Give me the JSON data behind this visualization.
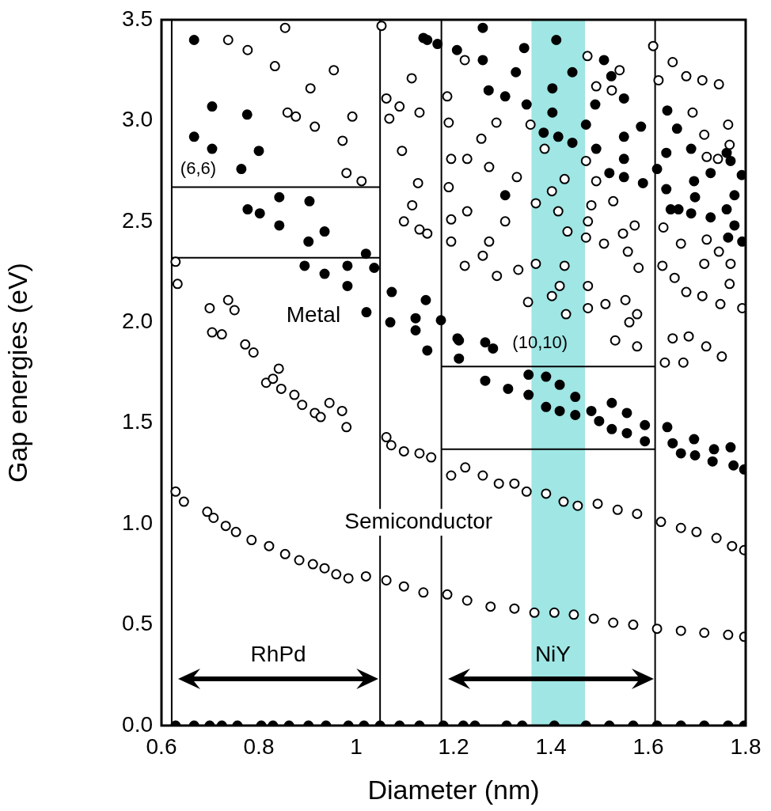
{
  "chart_data": {
    "type": "scatter",
    "xlabel": "Diameter (nm)",
    "ylabel": "Gap energies (eV)",
    "xlim": [
      0.6,
      1.8
    ],
    "xticks": [
      0.6,
      0.8,
      1,
      1.2,
      1.4,
      1.6,
      1.8
    ],
    "ylim": [
      0,
      3.5
    ],
    "yticks": [
      {
        "value": 0,
        "label": "0.0"
      },
      {
        "value": 0.5,
        "label": "0.5"
      },
      {
        "value": 1,
        "label": "1.0"
      },
      {
        "value": 1.5,
        "label": "1.5"
      },
      {
        "value": 2,
        "label": "2.0"
      },
      {
        "value": 2.5,
        "label": "2.5"
      },
      {
        "value": 3,
        "label": "3.0"
      },
      {
        "value": 3.5,
        "label": "3.5"
      }
    ],
    "grid": false,
    "legend": false,
    "marker": "circle",
    "series": [
      {
        "color": "#000000",
        "x": [
          0.629,
          0.646,
          0.694,
          0.707,
          0.732,
          0.753,
          0.785,
          0.821,
          0.854,
          0.883,
          0.911,
          0.935,
          0.959,
          0.984,
          1.02,
          1.062,
          1.098,
          1.138,
          1.187,
          1.228,
          1.276,
          1.325,
          1.366,
          1.407,
          1.447,
          1.488,
          1.528,
          1.569,
          1.618,
          1.667,
          1.715,
          1.764,
          1.797,
          0.629,
          0.633,
          0.699,
          0.704,
          0.724,
          0.737,
          0.75,
          0.772,
          0.789,
          0.815,
          0.829,
          0.841,
          0.846,
          0.873,
          0.889,
          0.915,
          0.927,
          0.945,
          0.971,
          0.98,
          1.062,
          1.072,
          1.098,
          1.13,
          1.154,
          1.195,
          1.224,
          1.26,
          1.293,
          1.325,
          1.35,
          1.39,
          1.426,
          1.455,
          1.496,
          1.537,
          1.577,
          1.626,
          1.667,
          1.699,
          1.74,
          1.772,
          1.797,
          0.854,
          0.737,
          0.777,
          0.833,
          0.954,
          0.906,
          0.859,
          0.876,
          0.992,
          0.915,
          0.972,
          0.98,
          1.011,
          1.052,
          1.114,
          1.062,
          1.068,
          1.089,
          1.13,
          1.094,
          1.127,
          1.115,
          1.13,
          1.098,
          1.146,
          1.187,
          1.19,
          1.195,
          1.19,
          1.195,
          1.195,
          1.223,
          1.288,
          1.257,
          1.228,
          1.273,
          1.33,
          1.228,
          1.306,
          1.273,
          1.26,
          1.223,
          1.289,
          1.333,
          1.369,
          1.402,
          1.428,
          1.415,
          1.387,
          1.358,
          1.369,
          1.428,
          1.418,
          1.402,
          1.353,
          1.431,
          1.434,
          1.475,
          1.493,
          1.541,
          1.525,
          1.472,
          1.493,
          1.483,
          1.528,
          1.476,
          1.472,
          1.509,
          1.548,
          1.572,
          1.558,
          1.58,
          1.476,
          1.512,
          1.476,
          1.553,
          1.577,
          1.561,
          1.577,
          1.532,
          1.61,
          1.65,
          1.678,
          1.711,
          1.745,
          1.621,
          1.691,
          1.764,
          1.715,
          1.767,
          1.72,
          1.743,
          1.631,
          1.667,
          1.72,
          1.745,
          1.769,
          1.715,
          1.678,
          1.711,
          1.748,
          1.767,
          1.793,
          1.629,
          1.654,
          1.65,
          1.683,
          1.719,
          1.751,
          1.672,
          1.634
        ],
        "values": [
          1.16,
          1.11,
          1.06,
          1.03,
          0.99,
          0.96,
          0.92,
          0.89,
          0.85,
          0.82,
          0.8,
          0.78,
          0.75,
          0.73,
          0.74,
          0.72,
          0.69,
          0.66,
          0.65,
          0.62,
          0.59,
          0.58,
          0.56,
          0.56,
          0.55,
          0.53,
          0.51,
          0.5,
          0.48,
          0.47,
          0.46,
          0.45,
          0.44,
          2.3,
          2.19,
          2.07,
          1.95,
          1.94,
          2.11,
          2.06,
          1.89,
          1.85,
          1.7,
          1.72,
          1.77,
          1.67,
          1.64,
          1.59,
          1.55,
          1.53,
          1.6,
          1.56,
          1.48,
          1.43,
          1.39,
          1.36,
          1.35,
          1.33,
          1.24,
          1.28,
          1.24,
          1.2,
          1.2,
          1.16,
          1.15,
          1.11,
          1.09,
          1.1,
          1.07,
          1.05,
          1.01,
          0.98,
          0.96,
          0.93,
          0.89,
          0.87,
          3.46,
          3.4,
          3.35,
          3.27,
          3.25,
          3.16,
          3.04,
          3.02,
          3.02,
          2.97,
          2.9,
          2.74,
          2.7,
          3.47,
          3.21,
          3.11,
          3.01,
          3.07,
          3.04,
          2.85,
          2.69,
          2.58,
          2.46,
          2.5,
          2.44,
          3.12,
          2.99,
          2.81,
          2.67,
          2.51,
          2.4,
          3.3,
          2.99,
          2.91,
          2.81,
          2.77,
          2.72,
          2.55,
          2.5,
          2.4,
          2.33,
          2.28,
          2.23,
          2.26,
          2.59,
          2.65,
          2.71,
          2.55,
          2.86,
          2.98,
          2.29,
          2.28,
          2.18,
          2.13,
          2.1,
          2.04,
          2.45,
          3.32,
          3.17,
          3.25,
          3.15,
          2.8,
          2.7,
          2.58,
          2.6,
          2.5,
          2.42,
          2.39,
          2.44,
          2.48,
          2.35,
          2.27,
          2.18,
          2.09,
          2.07,
          2.11,
          2.04,
          2.0,
          1.88,
          1.91,
          3.37,
          3.29,
          3.22,
          3.2,
          3.18,
          3.2,
          3.04,
          2.98,
          2.93,
          2.88,
          2.82,
          2.81,
          2.47,
          2.39,
          2.41,
          2.35,
          2.29,
          2.29,
          2.15,
          2.13,
          2.09,
          2.19,
          2.07,
          2.28,
          2.22,
          1.92,
          1.93,
          1.88,
          1.83,
          1.8,
          1.8
        ]
      },
      {
        "color": "#000000",
        "x": [
          0.629,
          0.667,
          0.699,
          0.724,
          0.756,
          0.805,
          0.829,
          0.862,
          0.902,
          0.938,
          0.984,
          1.016,
          1.049,
          1.089,
          1.13,
          1.179,
          1.22,
          1.244,
          1.309,
          1.341,
          1.407,
          1.472,
          1.52,
          1.569,
          1.618,
          1.667,
          1.715,
          1.764,
          1.797,
          0.667,
          0.704,
          0.776,
          0.667,
          0.704,
          0.8,
          0.764,
          0.842,
          0.904,
          0.777,
          0.802,
          0.842,
          0.935,
          0.902,
          1.02,
          0.894,
          0.935,
          0.982,
          0.982,
          1.037,
          1.021,
          1.073,
          1.07,
          1.122,
          1.122,
          1.143,
          1.146,
          1.174,
          1.138,
          1.146,
          1.167,
          1.207,
          1.208,
          1.26,
          1.26,
          1.411,
          1.345,
          1.272,
          1.306,
          1.328,
          1.444,
          1.403,
          1.35,
          1.403,
          1.385,
          1.415,
          1.444,
          1.509,
          1.524,
          1.491,
          1.55,
          1.472,
          1.585,
          1.55,
          1.493,
          1.55,
          1.52,
          1.55,
          1.589,
          1.306,
          1.639,
          1.659,
          1.688,
          1.637,
          1.761,
          1.769,
          1.618,
          1.728,
          1.694,
          1.792,
          1.637,
          1.696,
          1.777,
          1.646,
          1.662,
          1.688,
          1.728,
          1.761,
          1.777,
          1.764,
          1.793,
          1.211,
          1.265,
          1.281,
          1.211,
          1.265,
          1.312,
          1.354,
          1.39,
          1.418,
          1.354,
          1.39,
          1.418,
          1.45,
          1.45,
          1.483,
          1.499,
          1.525,
          1.525,
          1.556,
          1.556,
          1.593,
          1.593,
          1.639,
          1.65,
          1.667,
          1.694,
          1.696,
          1.735,
          1.732,
          1.769,
          1.775,
          1.797
        ],
        "values": [
          0,
          0,
          0,
          0,
          0,
          0,
          0,
          0,
          0,
          0,
          0,
          0,
          0,
          0,
          0,
          0,
          0,
          0,
          0,
          0,
          0,
          0,
          0,
          0,
          0,
          0,
          0,
          0,
          0,
          3.4,
          3.07,
          3.03,
          2.92,
          2.86,
          2.85,
          2.76,
          2.62,
          2.6,
          2.56,
          2.54,
          2.48,
          2.45,
          2.4,
          2.34,
          2.28,
          2.24,
          2.28,
          2.18,
          2.27,
          2.05,
          2.15,
          2.0,
          2.02,
          1.96,
          2.11,
          1.86,
          2.01,
          3.41,
          3.4,
          3.38,
          3.35,
          1.92,
          3.46,
          3.3,
          3.4,
          3.36,
          3.15,
          3.12,
          3.24,
          3.24,
          3.16,
          3.08,
          3.04,
          2.94,
          2.92,
          2.89,
          3.3,
          3.22,
          3.08,
          3.11,
          2.98,
          2.97,
          2.92,
          2.86,
          2.81,
          2.74,
          2.72,
          2.69,
          2.63,
          3.05,
          2.96,
          2.86,
          2.84,
          2.84,
          2.8,
          2.76,
          2.74,
          2.7,
          2.73,
          2.66,
          2.62,
          2.63,
          2.56,
          2.56,
          2.54,
          2.52,
          2.56,
          2.48,
          2.42,
          2.4,
          1.91,
          1.9,
          1.87,
          1.82,
          1.71,
          1.67,
          1.74,
          1.73,
          1.69,
          1.64,
          1.58,
          1.56,
          1.63,
          1.54,
          1.56,
          1.51,
          1.6,
          1.47,
          1.55,
          1.45,
          1.49,
          1.41,
          1.48,
          1.4,
          1.35,
          1.42,
          1.34,
          1.37,
          1.31,
          1.38,
          1.29,
          1.27
        ]
      },
      {
        "type": "line",
        "marker": "none",
        "color": "#000000",
        "x": [
          0.621,
          1.049
        ],
        "values": [
          2.67,
          2.67
        ]
      },
      {
        "type": "line",
        "marker": "none",
        "color": "#000000",
        "x": [
          0.621,
          1.049
        ],
        "values": [
          2.32,
          2.32
        ]
      },
      {
        "type": "line",
        "marker": "none",
        "color": "#000000",
        "x": [
          1.175,
          1.614
        ],
        "values": [
          1.78,
          1.78
        ]
      },
      {
        "type": "line",
        "marker": "none",
        "color": "#000000",
        "x": [
          1.175,
          1.614
        ],
        "values": [
          1.37,
          1.37
        ]
      }
    ],
    "ref_lines": [
      {
        "axis": "x",
        "value": 0.621
      },
      {
        "axis": "x",
        "value": 1.049
      },
      {
        "axis": "x",
        "value": 1.175
      },
      {
        "axis": "x",
        "value": 1.614
      }
    ],
    "bands": [
      {
        "axis": "x",
        "from": 1.36,
        "to": 1.47,
        "color": "#7fdedb"
      }
    ],
    "annotations": [
      "(6,6)",
      "(10,10)",
      "Metal",
      "Semiconductor",
      "RhPd",
      "NiY"
    ]
  }
}
